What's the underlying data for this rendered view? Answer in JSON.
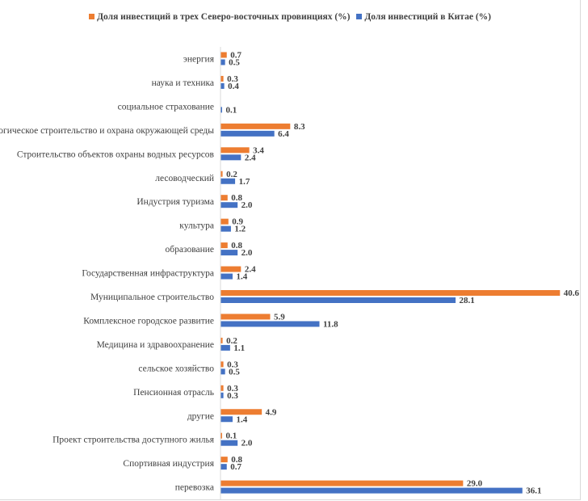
{
  "chart_data": {
    "type": "bar",
    "orientation": "horizontal",
    "categories": [
      "энергия",
      "наука и техника",
      "социальное страхование",
      "Экологическое строительство и охрана окружающей среды",
      "Строительство объектов охраны водных ресурсов",
      "лесоводческий",
      "Индустрия туризма",
      "культура",
      "образование",
      "Государственная инфраструктура",
      "Муниципальное строительство",
      "Комплексное городское развитие",
      "Медицина и здравоохранение",
      "сельское хозяйство",
      "Пенсионная отрасль",
      "другие",
      "Проект строительства доступного жилья",
      "Спортивная индустрия",
      "перевозка"
    ],
    "series": [
      {
        "name": "Доля инвестиций в трех Северо-восточных провинциях (%)",
        "color": "#ED7D31",
        "values": [
          0.7,
          0.3,
          null,
          8.3,
          3.4,
          0.2,
          0.8,
          0.9,
          0.8,
          2.4,
          40.6,
          5.9,
          0.2,
          0.3,
          0.3,
          4.9,
          0.1,
          0.8,
          29.0
        ]
      },
      {
        "name": "Доля инвестиций в Китае (%)",
        "color": "#4472C4",
        "values": [
          0.5,
          0.4,
          0.1,
          6.4,
          2.4,
          1.7,
          2.0,
          1.2,
          2.0,
          1.4,
          28.1,
          11.8,
          1.1,
          0.5,
          0.3,
          1.4,
          2.0,
          0.7,
          36.1
        ]
      }
    ],
    "legend_position": "top-right",
    "data_labels": true,
    "grid": false,
    "xlim": [
      0,
      42
    ]
  }
}
